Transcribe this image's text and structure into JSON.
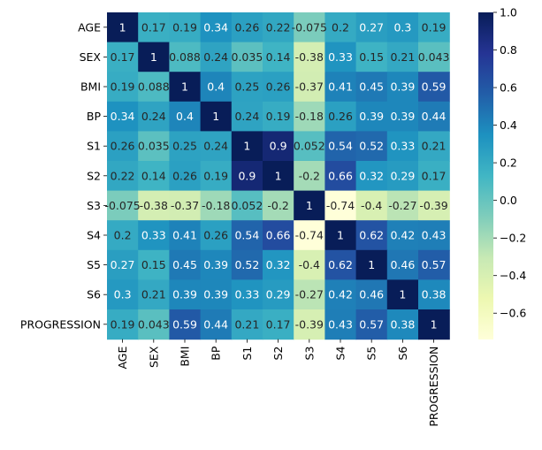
{
  "chart_data": {
    "type": "heatmap",
    "title": "",
    "xlabel": "",
    "ylabel": "",
    "rows": [
      "AGE",
      "SEX",
      "BMI",
      "BP",
      "S1",
      "S2",
      "S3",
      "S4",
      "S5",
      "S6",
      "PROGRESSION"
    ],
    "cols": [
      "AGE",
      "SEX",
      "BMI",
      "BP",
      "S1",
      "S2",
      "S3",
      "S4",
      "S5",
      "S6",
      "PROGRESSION"
    ],
    "labels": [
      [
        "1",
        "0.17",
        "0.19",
        "0.34",
        "0.26",
        "0.22",
        "-0.075",
        "0.2",
        "0.27",
        "0.3",
        "0.19"
      ],
      [
        "0.17",
        "1",
        "0.088",
        "0.24",
        "0.035",
        "0.14",
        "-0.38",
        "0.33",
        "0.15",
        "0.21",
        "0.043"
      ],
      [
        "0.19",
        "0.088",
        "1",
        "0.4",
        "0.25",
        "0.26",
        "-0.37",
        "0.41",
        "0.45",
        "0.39",
        "0.59"
      ],
      [
        "0.34",
        "0.24",
        "0.4",
        "1",
        "0.24",
        "0.19",
        "-0.18",
        "0.26",
        "0.39",
        "0.39",
        "0.44"
      ],
      [
        "0.26",
        "0.035",
        "0.25",
        "0.24",
        "1",
        "0.9",
        "0.052",
        "0.54",
        "0.52",
        "0.33",
        "0.21"
      ],
      [
        "0.22",
        "0.14",
        "0.26",
        "0.19",
        "0.9",
        "1",
        "-0.2",
        "0.66",
        "0.32",
        "0.29",
        "0.17"
      ],
      [
        "-0.075",
        "-0.38",
        "-0.37",
        "-0.18",
        "0.052",
        "-0.2",
        "1",
        "-0.74",
        "-0.4",
        "-0.27",
        "-0.39"
      ],
      [
        "0.2",
        "0.33",
        "0.41",
        "0.26",
        "0.54",
        "0.66",
        "-0.74",
        "1",
        "0.62",
        "0.42",
        "0.43"
      ],
      [
        "0.27",
        "0.15",
        "0.45",
        "0.39",
        "0.52",
        "0.32",
        "-0.4",
        "0.62",
        "1",
        "0.46",
        "0.57"
      ],
      [
        "0.3",
        "0.21",
        "0.39",
        "0.39",
        "0.33",
        "0.29",
        "-0.27",
        "0.42",
        "0.46",
        "1",
        "0.38"
      ],
      [
        "0.19",
        "0.043",
        "0.59",
        "0.44",
        "0.21",
        "0.17",
        "-0.39",
        "0.43",
        "0.57",
        "0.38",
        "1"
      ]
    ],
    "colorbar": {
      "min": -0.74,
      "max": 1.0,
      "ticks": [
        -0.6,
        -0.4,
        -0.2,
        0.0,
        0.2,
        0.4,
        0.6,
        0.8,
        1.0
      ],
      "tick_labels": [
        "−0.6",
        "−0.4",
        "−0.2",
        "0.0",
        "0.2",
        "0.4",
        "0.6",
        "0.8",
        "1.0"
      ],
      "colormap": "YlGnBu",
      "colormap_stops": [
        "#ffffd9",
        "#edf8b1",
        "#c7e9b4",
        "#7fcdbb",
        "#41b6c4",
        "#1d91c0",
        "#225ea8",
        "#253494",
        "#081d58"
      ]
    },
    "text_colors": {
      "dark": "#262626",
      "light": "#ffffff"
    }
  }
}
